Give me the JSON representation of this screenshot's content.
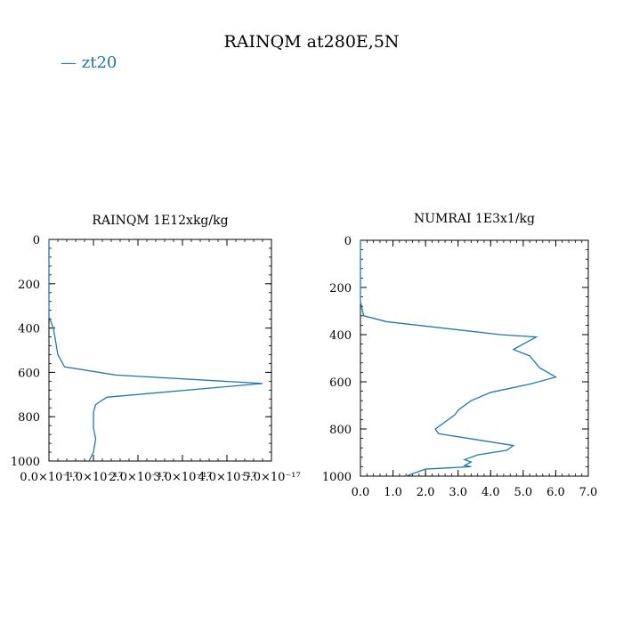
{
  "figure": {
    "title": "RAINQM at280E,5N",
    "legend_label": "zt20",
    "line_color": "#1f77b4"
  },
  "chart_data": [
    {
      "type": "line",
      "title": "RAINQM  1E12xkg/kg",
      "xlim": [
        0,
        5e-17
      ],
      "ylim": [
        1000,
        0
      ],
      "y_inverted": true,
      "xticks": [
        0,
        1e-17,
        2e-17,
        3e-17,
        4e-17,
        5e-17
      ],
      "xtick_labels": [
        "0.0×10⁻¹⁷",
        "1.0×10⁻¹⁷",
        "2.0×10⁻¹⁷",
        "3.0×10⁻¹⁷",
        "4.0×10⁻¹⁷",
        "5.0×10⁻¹⁷"
      ],
      "yticks": [
        0,
        200,
        400,
        600,
        800,
        1000
      ],
      "ytick_labels": [
        "0",
        "200",
        "400",
        "600",
        "800",
        "1000"
      ],
      "series": [
        {
          "name": "zt20",
          "x": [
            0,
            0,
            1e-18,
            2e-18,
            3.5e-18,
            1.5e-17,
            4.8e-17,
            1.3e-17,
            1.05e-17,
            1e-17,
            1e-17,
            1.05e-17,
            1e-17,
            9e-18
          ],
          "y": [
            0,
            350,
            400,
            520,
            575,
            612,
            650,
            712,
            745,
            780,
            850,
            900,
            960,
            1000
          ]
        }
      ]
    },
    {
      "type": "line",
      "title": "NUMRAI  1E3x1/kg",
      "xlim": [
        0,
        7
      ],
      "ylim": [
        1000,
        0
      ],
      "y_inverted": true,
      "xticks": [
        0,
        1,
        2,
        3,
        4,
        5,
        6,
        7
      ],
      "xtick_labels": [
        "0.0",
        "1.0",
        "2.0",
        "3.0",
        "4.0",
        "5.0",
        "6.0",
        "7.0"
      ],
      "yticks": [
        0,
        200,
        400,
        600,
        800,
        1000
      ],
      "ytick_labels": [
        "0",
        "200",
        "400",
        "600",
        "800",
        "1000"
      ],
      "series": [
        {
          "name": "zt20",
          "x": [
            0,
            0,
            0.1,
            0.8,
            4.3,
            5.4,
            4.7,
            5.2,
            5.5,
            6.0,
            5.2,
            4.0,
            3.4,
            3.0,
            2.9,
            2.3,
            2.4,
            4.7,
            4.5,
            3.6,
            3.2,
            3.4,
            3.2,
            3.4,
            2.0,
            1.4
          ],
          "y": [
            0,
            260,
            320,
            345,
            400,
            410,
            463,
            490,
            540,
            580,
            610,
            645,
            680,
            720,
            740,
            800,
            820,
            870,
            890,
            910,
            930,
            940,
            955,
            960,
            970,
            1000
          ]
        }
      ]
    }
  ]
}
